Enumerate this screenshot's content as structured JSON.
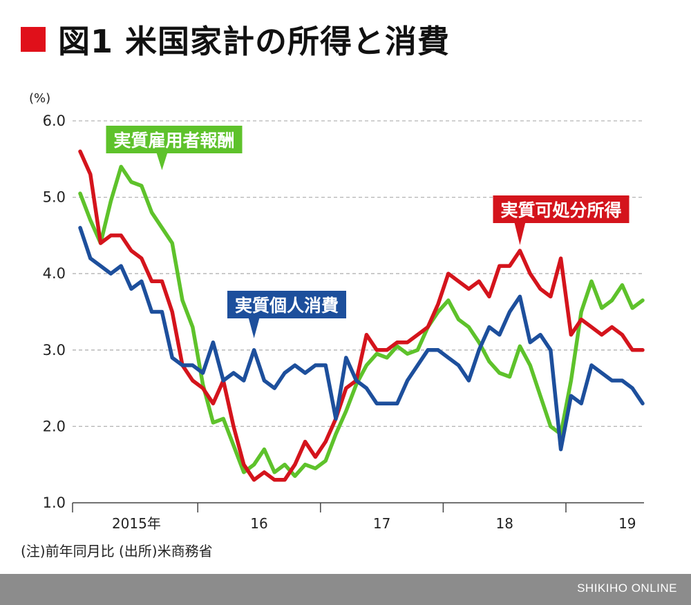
{
  "title": "図1 米国家計の所得と消費",
  "unit_label": "(%)",
  "notes": "(注)前年同月比 (出所)米商務省",
  "footer_credit": "SHIKIHO ONLINE",
  "colors": {
    "title_accent": "#e0101a",
    "grid": "#b3b3b3",
    "footer": "#8c8c8c"
  },
  "chart_data": {
    "type": "line",
    "ylim": [
      1.0,
      6.0
    ],
    "y_ticks": [
      "1.0",
      "2.0",
      "3.0",
      "4.0",
      "5.0",
      "6.0"
    ],
    "x_tick_labels": [
      "2015年",
      "16",
      "17",
      "18",
      "19"
    ],
    "x_start": "2015-01",
    "grid": "horizontal-dashed",
    "series": [
      {
        "name": "実質雇用者報酬",
        "color": "#5ec22b",
        "values": [
          5.05,
          4.7,
          4.4,
          4.95,
          5.4,
          5.2,
          5.15,
          4.8,
          4.6,
          4.4,
          3.65,
          3.3,
          2.55,
          2.05,
          2.1,
          1.75,
          1.4,
          1.5,
          1.7,
          1.4,
          1.5,
          1.35,
          1.5,
          1.45,
          1.55,
          1.9,
          2.2,
          2.55,
          2.8,
          2.95,
          2.9,
          3.05,
          2.95,
          3.0,
          3.3,
          3.5,
          3.65,
          3.4,
          3.3,
          3.1,
          2.85,
          2.7,
          2.65,
          3.05,
          2.8,
          2.4,
          2.0,
          1.9,
          2.6,
          3.5,
          3.9,
          3.55,
          3.65,
          3.85,
          3.55,
          3.65
        ]
      },
      {
        "name": "実質可処分所得",
        "color": "#d4141c",
        "values": [
          5.6,
          5.3,
          4.4,
          4.5,
          4.5,
          4.3,
          4.2,
          3.9,
          3.9,
          3.5,
          2.8,
          2.6,
          2.5,
          2.3,
          2.6,
          2.0,
          1.5,
          1.3,
          1.4,
          1.3,
          1.3,
          1.5,
          1.8,
          1.6,
          1.8,
          2.1,
          2.5,
          2.6,
          3.2,
          3.0,
          3.0,
          3.1,
          3.1,
          3.2,
          3.3,
          3.6,
          4.0,
          3.9,
          3.8,
          3.9,
          3.7,
          4.1,
          4.1,
          4.3,
          4.0,
          3.8,
          3.7,
          4.2,
          3.2,
          3.4,
          3.3,
          3.2,
          3.3,
          3.2,
          3.0,
          3.0
        ]
      },
      {
        "name": "実質個人消費",
        "color": "#1d4f9c",
        "values": [
          4.6,
          4.2,
          4.1,
          4.0,
          4.1,
          3.8,
          3.9,
          3.5,
          3.5,
          2.9,
          2.8,
          2.8,
          2.7,
          3.1,
          2.6,
          2.7,
          2.6,
          3.0,
          2.6,
          2.5,
          2.7,
          2.8,
          2.7,
          2.8,
          2.8,
          2.1,
          2.9,
          2.6,
          2.5,
          2.3,
          2.3,
          2.3,
          2.6,
          2.8,
          3.0,
          3.0,
          2.9,
          2.8,
          2.6,
          3.0,
          3.3,
          3.2,
          3.5,
          3.7,
          3.1,
          3.2,
          3.0,
          1.7,
          2.4,
          2.3,
          2.8,
          2.7,
          2.6,
          2.6,
          2.5,
          2.3
        ]
      }
    ]
  }
}
